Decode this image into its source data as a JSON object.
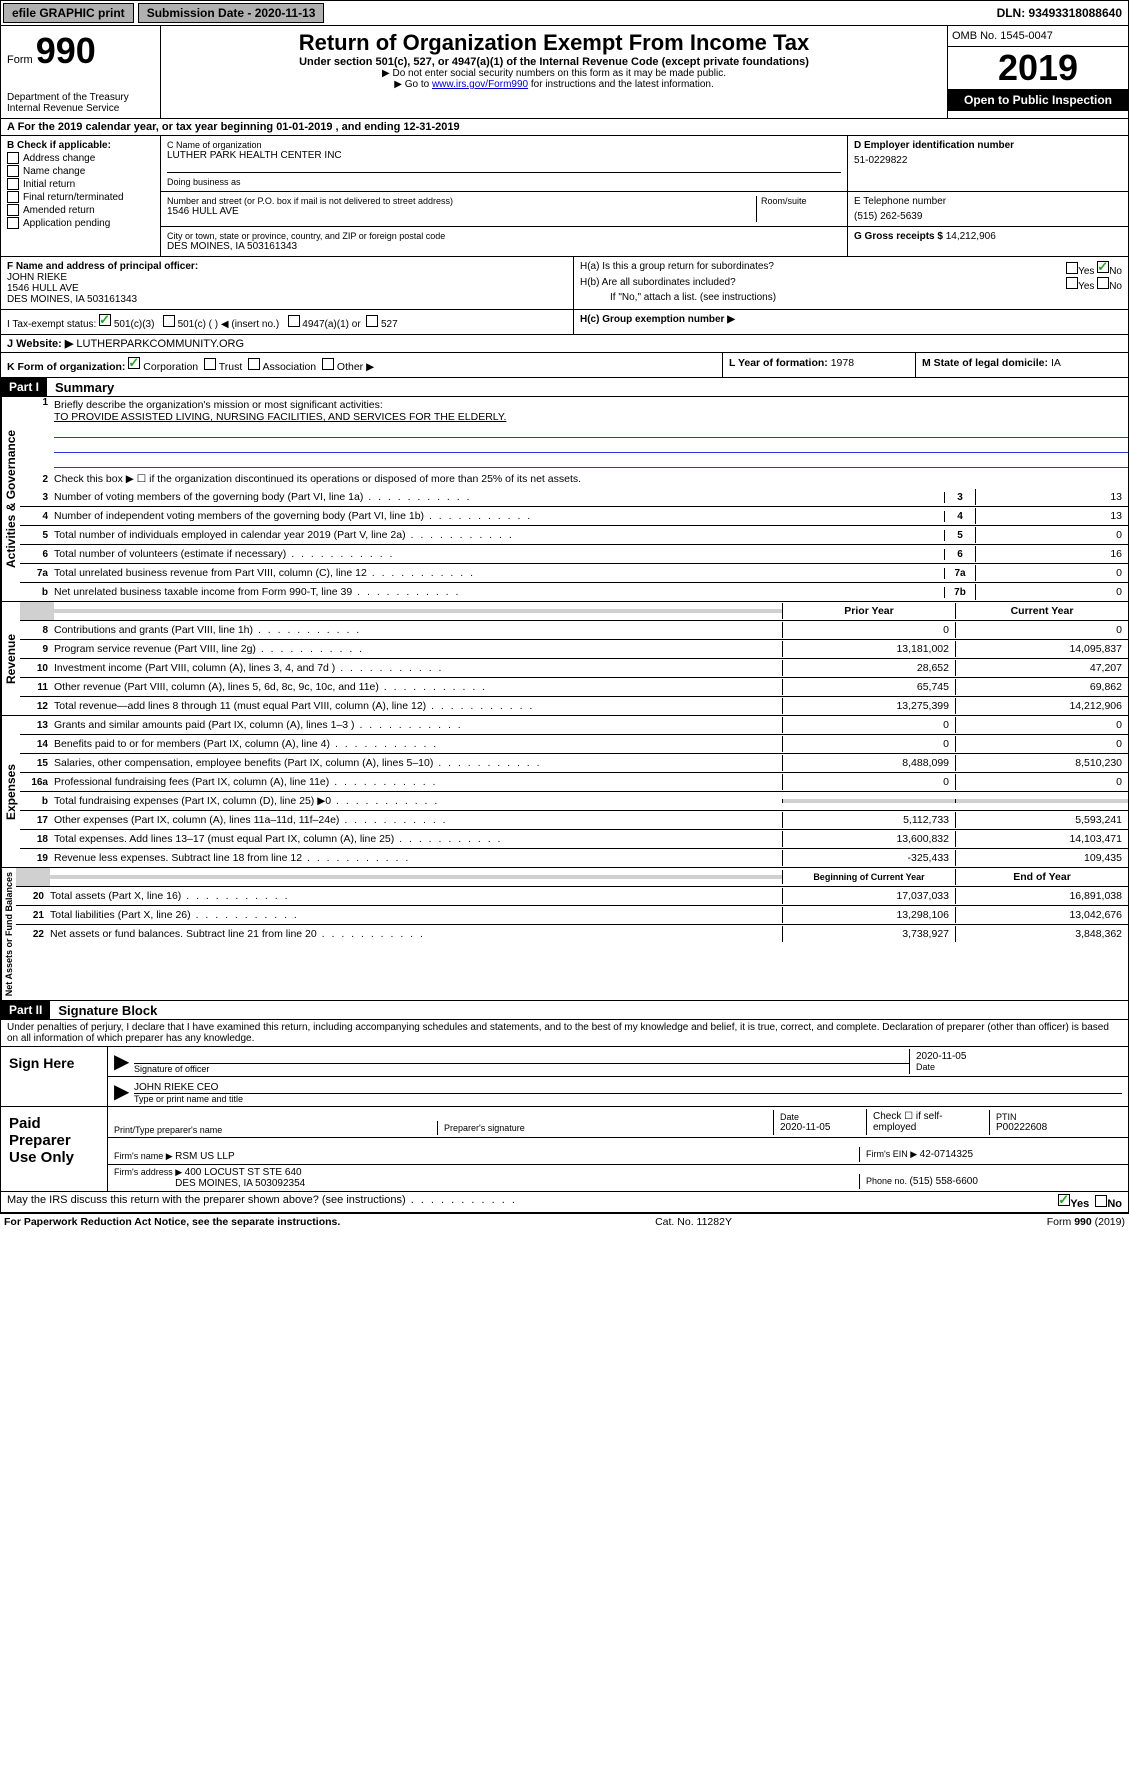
{
  "topbar": {
    "efile": "efile GRAPHIC print",
    "submission": "Submission Date - 2020-11-13",
    "dln": "DLN: 93493318088640"
  },
  "header": {
    "form_label": "Form",
    "form_num": "990",
    "dept": "Department of the Treasury\nInternal Revenue Service",
    "title": "Return of Organization Exempt From Income Tax",
    "subtitle": "Under section 501(c), 527, or 4947(a)(1) of the Internal Revenue Code (except private foundations)",
    "note1": "▶ Do not enter social security numbers on this form as it may be made public.",
    "note2_pre": "▶ Go to ",
    "note2_link": "www.irs.gov/Form990",
    "note2_post": " for instructions and the latest information.",
    "omb": "OMB No. 1545-0047",
    "year": "2019",
    "open": "Open to Public Inspection"
  },
  "line_a": "A For the 2019 calendar year, or tax year beginning 01-01-2019    , and ending 12-31-2019",
  "box_b": {
    "header": "B Check if applicable:",
    "items": [
      "Address change",
      "Name change",
      "Initial return",
      "Final return/terminated",
      "Amended return",
      "Application pending"
    ]
  },
  "box_c": {
    "label_name": "C Name of organization",
    "name": "LUTHER PARK HEALTH CENTER INC",
    "dba_label": "Doing business as",
    "addr_label": "Number and street (or P.O. box if mail is not delivered to street address)",
    "room_label": "Room/suite",
    "addr": "1546 HULL AVE",
    "city_label": "City or town, state or province, country, and ZIP or foreign postal code",
    "city": "DES MOINES, IA  503161343"
  },
  "box_d": {
    "label": "D Employer identification number",
    "value": "51-0229822"
  },
  "box_e": {
    "label": "E Telephone number",
    "value": "(515) 262-5639"
  },
  "box_g": {
    "label": "G Gross receipts $ ",
    "value": "14,212,906"
  },
  "box_f": {
    "label": "F  Name and address of principal officer:",
    "name": "JOHN RIEKE",
    "addr": "1546 HULL AVE\nDES MOINES, IA  503161343"
  },
  "box_h": {
    "ha": "H(a)  Is this a group return for subordinates?",
    "hb": "H(b)  Are all subordinates included?",
    "hb_note": "If \"No,\" attach a list. (see instructions)",
    "hc": "H(c)  Group exemption number ▶",
    "yes": "Yes",
    "no": "No"
  },
  "box_i": {
    "label": "I   Tax-exempt status:",
    "c3": "501(c)(3)",
    "c": "501(c) (  ) ◀ (insert no.)",
    "a1": "4947(a)(1) or",
    "s527": "527"
  },
  "box_j": {
    "label": "J   Website: ▶ ",
    "value": "LUTHERPARKCOMMUNITY.ORG"
  },
  "box_k": {
    "label": "K Form of organization:",
    "corp": "Corporation",
    "trust": "Trust",
    "assoc": "Association",
    "other": "Other ▶"
  },
  "box_l": {
    "label": "L Year of formation: ",
    "value": "1978"
  },
  "box_m": {
    "label": "M State of legal domicile: ",
    "value": "IA"
  },
  "part1": {
    "label": "Part I",
    "title": "Summary"
  },
  "summary": {
    "l1_label": "Briefly describe the organization's mission or most significant activities:",
    "l1_text": "TO PROVIDE ASSISTED LIVING, NURSING FACILITIES, AND SERVICES FOR THE ELDERLY.",
    "l2": "Check this box ▶ ☐  if the organization discontinued its operations or disposed of more than 25% of its net assets.",
    "rows_single": [
      {
        "n": "3",
        "label": "Number of voting members of the governing body (Part VI, line 1a)",
        "box": "3",
        "val": "13"
      },
      {
        "n": "4",
        "label": "Number of independent voting members of the governing body (Part VI, line 1b)",
        "box": "4",
        "val": "13"
      },
      {
        "n": "5",
        "label": "Total number of individuals employed in calendar year 2019 (Part V, line 2a)",
        "box": "5",
        "val": "0"
      },
      {
        "n": "6",
        "label": "Total number of volunteers (estimate if necessary)",
        "box": "6",
        "val": "16"
      },
      {
        "n": "7a",
        "label": "Total unrelated business revenue from Part VIII, column (C), line 12",
        "box": "7a",
        "val": "0"
      },
      {
        "n": "b",
        "label": "Net unrelated business taxable income from Form 990-T, line 39",
        "box": "7b",
        "val": "0"
      }
    ],
    "col_prior": "Prior Year",
    "col_current": "Current Year",
    "revenue": [
      {
        "n": "8",
        "label": "Contributions and grants (Part VIII, line 1h)",
        "p": "0",
        "c": "0"
      },
      {
        "n": "9",
        "label": "Program service revenue (Part VIII, line 2g)",
        "p": "13,181,002",
        "c": "14,095,837"
      },
      {
        "n": "10",
        "label": "Investment income (Part VIII, column (A), lines 3, 4, and 7d )",
        "p": "28,652",
        "c": "47,207"
      },
      {
        "n": "11",
        "label": "Other revenue (Part VIII, column (A), lines 5, 6d, 8c, 9c, 10c, and 11e)",
        "p": "65,745",
        "c": "69,862"
      },
      {
        "n": "12",
        "label": "Total revenue—add lines 8 through 11 (must equal Part VIII, column (A), line 12)",
        "p": "13,275,399",
        "c": "14,212,906"
      }
    ],
    "expenses": [
      {
        "n": "13",
        "label": "Grants and similar amounts paid (Part IX, column (A), lines 1–3 )",
        "p": "0",
        "c": "0"
      },
      {
        "n": "14",
        "label": "Benefits paid to or for members (Part IX, column (A), line 4)",
        "p": "0",
        "c": "0"
      },
      {
        "n": "15",
        "label": "Salaries, other compensation, employee benefits (Part IX, column (A), lines 5–10)",
        "p": "8,488,099",
        "c": "8,510,230"
      },
      {
        "n": "16a",
        "label": "Professional fundraising fees (Part IX, column (A), line 11e)",
        "p": "0",
        "c": "0"
      },
      {
        "n": "b",
        "label": "Total fundraising expenses (Part IX, column (D), line 25) ▶0",
        "p": "",
        "c": "",
        "gray": true
      },
      {
        "n": "17",
        "label": "Other expenses (Part IX, column (A), lines 11a–11d, 11f–24e)",
        "p": "5,112,733",
        "c": "5,593,241"
      },
      {
        "n": "18",
        "label": "Total expenses. Add lines 13–17 (must equal Part IX, column (A), line 25)",
        "p": "13,600,832",
        "c": "14,103,471"
      },
      {
        "n": "19",
        "label": "Revenue less expenses. Subtract line 18 from line 12",
        "p": "-325,433",
        "c": "109,435"
      }
    ],
    "col_begin": "Beginning of Current Year",
    "col_end": "End of Year",
    "netassets": [
      {
        "n": "20",
        "label": "Total assets (Part X, line 16)",
        "p": "17,037,033",
        "c": "16,891,038"
      },
      {
        "n": "21",
        "label": "Total liabilities (Part X, line 26)",
        "p": "13,298,106",
        "c": "13,042,676"
      },
      {
        "n": "22",
        "label": "Net assets or fund balances. Subtract line 21 from line 20",
        "p": "3,738,927",
        "c": "3,848,362"
      }
    ]
  },
  "vlabels": {
    "gov": "Activities & Governance",
    "rev": "Revenue",
    "exp": "Expenses",
    "net": "Net Assets or Fund Balances"
  },
  "part2": {
    "label": "Part II",
    "title": "Signature Block",
    "perjury": "Under penalties of perjury, I declare that I have examined this return, including accompanying schedules and statements, and to the best of my knowledge and belief, it is true, correct, and complete. Declaration of preparer (other than officer) is based on all information of which preparer has any knowledge."
  },
  "sign": {
    "here": "Sign Here",
    "sig_officer": "Signature of officer",
    "date": "Date",
    "date_val": "2020-11-05",
    "name": "JOHN RIEKE CEO",
    "name_label": "Type or print name and title"
  },
  "paid": {
    "label": "Paid Preparer Use Only",
    "prep_name_label": "Print/Type preparer's name",
    "prep_sig_label": "Preparer's signature",
    "date_label": "Date",
    "date_val": "2020-11-05",
    "check_label": "Check ☐ if self-employed",
    "ptin_label": "PTIN",
    "ptin": "P00222608",
    "firm_name_label": "Firm's name    ▶ ",
    "firm_name": "RSM US LLP",
    "firm_ein_label": "Firm's EIN ▶ ",
    "firm_ein": "42-0714325",
    "firm_addr_label": "Firm's address ▶ ",
    "firm_addr": "400 LOCUST ST STE 640",
    "firm_city": "DES MOINES, IA  503092354",
    "phone_label": "Phone no. ",
    "phone": "(515) 558-6600"
  },
  "discuss": "May the IRS discuss this return with the preparer shown above? (see instructions)",
  "footer": {
    "left": "For Paperwork Reduction Act Notice, see the separate instructions.",
    "mid": "Cat. No. 11282Y",
    "right": "Form 990 (2019)"
  }
}
